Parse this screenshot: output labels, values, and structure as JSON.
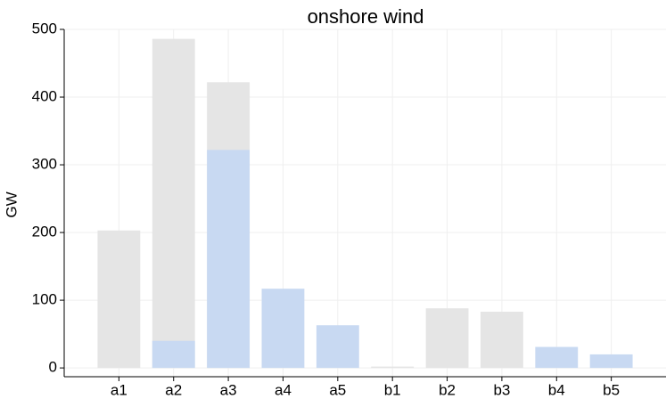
{
  "chart_data": {
    "type": "bar",
    "title": "onshore wind",
    "y_label": "GW",
    "categories": [
      "a1",
      "a2",
      "a3",
      "a4",
      "a5",
      "b1",
      "b2",
      "b3",
      "b4",
      "b5"
    ],
    "series": [
      {
        "color": "#e5e5e5",
        "values": [
          203,
          486,
          422,
          null,
          null,
          2,
          88,
          83,
          null,
          null
        ]
      },
      {
        "color": "#c8d9f2",
        "values": [
          null,
          40,
          322,
          117,
          63,
          null,
          null,
          null,
          31,
          20
        ]
      }
    ],
    "ylim": [
      -13,
      500
    ],
    "yticks": [
      0,
      100,
      200,
      300,
      400,
      500
    ],
    "grid": true
  }
}
